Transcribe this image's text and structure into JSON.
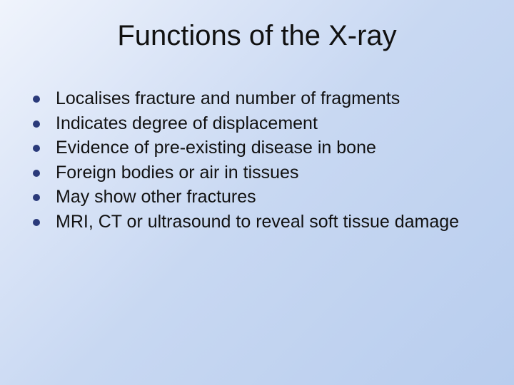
{
  "slide": {
    "title": "Functions of the X-ray",
    "background_gradient": [
      "#f0f4fc",
      "#dbe5f7",
      "#c8d8f2",
      "#b8cdee"
    ],
    "title_fontsize": 40,
    "title_color": "#111111",
    "bullet_dot_color": "#2a3a7a",
    "bullet_text_color": "#111111",
    "bullet_fontsize": 25,
    "bullets": [
      "Localises fracture and number of fragments",
      "Indicates degree of displacement",
      "Evidence of pre-existing disease in bone",
      "Foreign bodies or air in tissues",
      "May show other fractures",
      "MRI, CT or ultrasound to reveal soft tissue damage"
    ]
  }
}
